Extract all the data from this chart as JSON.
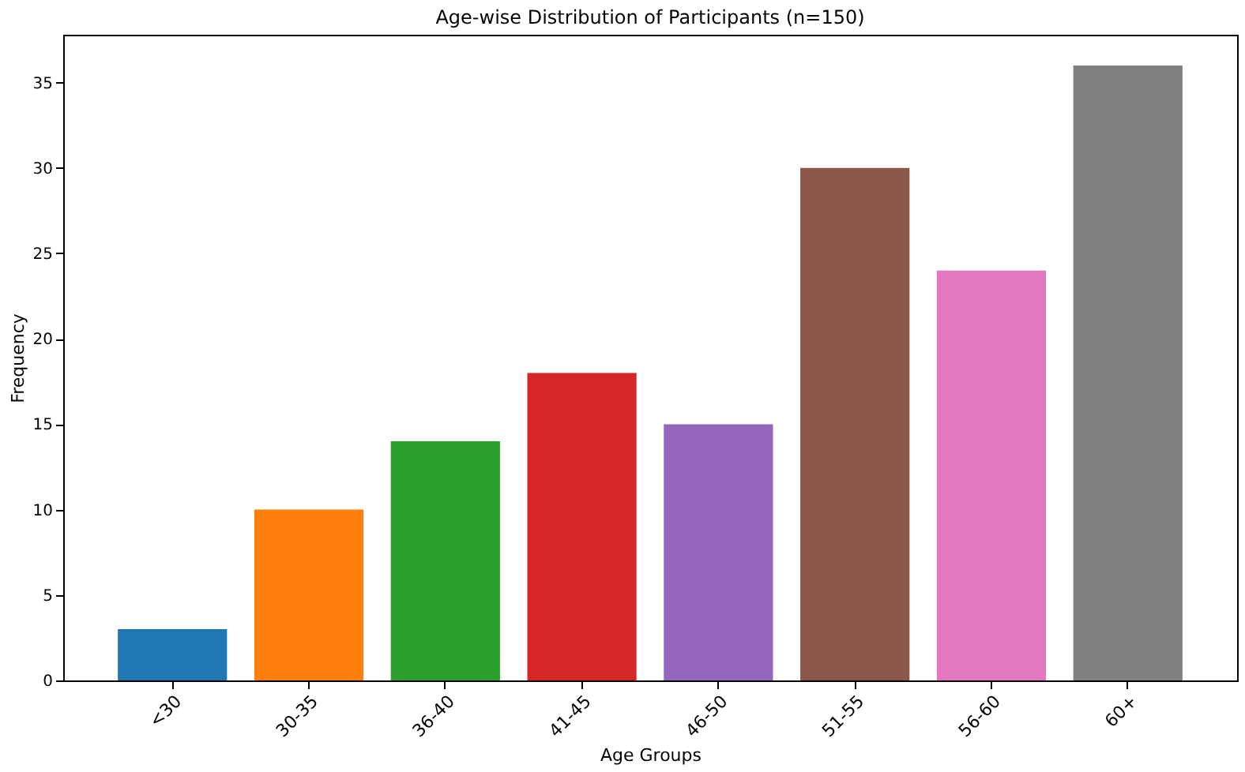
{
  "chart_data": {
    "type": "bar",
    "title": "Age-wise Distribution of Participants (n=150)",
    "xlabel": "Age Groups",
    "ylabel": "Frequency",
    "categories": [
      "<30",
      "30-35",
      "36-40",
      "41-45",
      "46-50",
      "51-55",
      "56-60",
      "60+"
    ],
    "values": [
      3,
      10,
      14,
      18,
      15,
      30,
      24,
      36
    ],
    "colors": [
      "#1f77b4",
      "#ff7f0e",
      "#2ca02c",
      "#d62728",
      "#9467bd",
      "#8c564b",
      "#e377c2",
      "#7f7f7f"
    ],
    "ylim": [
      0,
      37.8
    ],
    "yticks": [
      0,
      5,
      10,
      15,
      20,
      25,
      30,
      35
    ],
    "grid": false
  }
}
